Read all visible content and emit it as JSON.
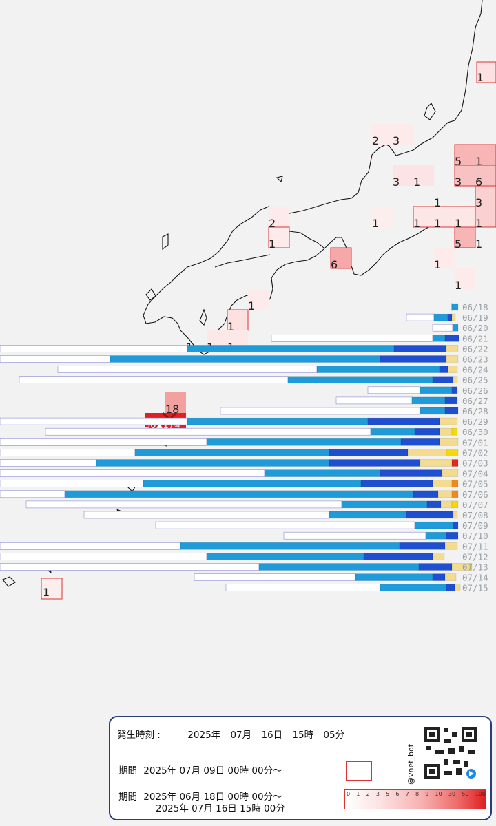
{
  "map": {
    "grid_cells": [
      {
        "label": "1"
      },
      {
        "label": "2"
      },
      {
        "label": "3"
      },
      {
        "label": "5"
      },
      {
        "label": "1"
      },
      {
        "label": "3"
      },
      {
        "label": "1"
      },
      {
        "label": "3"
      },
      {
        "label": "6"
      },
      {
        "label": "1"
      },
      {
        "label": "3"
      },
      {
        "label": "1"
      },
      {
        "label": "1"
      },
      {
        "label": "1"
      },
      {
        "label": "1"
      },
      {
        "label": "1"
      },
      {
        "label": "5"
      },
      {
        "label": "1"
      },
      {
        "label": "1"
      },
      {
        "label": "1"
      },
      {
        "label": "2"
      },
      {
        "label": "1"
      },
      {
        "label": "6"
      },
      {
        "label": "1"
      },
      {
        "label": "1"
      },
      {
        "label": "1"
      },
      {
        "label": "1"
      },
      {
        "label": "1"
      },
      {
        "label": "18"
      },
      {
        "label": "1"
      }
    ],
    "epicenter_label": "50▲174"
  },
  "daily_chart": {
    "dates": [
      "06/18",
      "06/19",
      "06/20",
      "06/21",
      "06/22",
      "06/23",
      "06/24",
      "06/25",
      "06/26",
      "06/27",
      "06/28",
      "06/29",
      "06/30",
      "07/01",
      "07/02",
      "07/03",
      "07/04",
      "07/05",
      "07/06",
      "07/07",
      "07/08",
      "07/09",
      "07/10",
      "07/11",
      "07/12",
      "07/13",
      "07/14",
      "07/15"
    ],
    "colors": {
      "empty": "#ffffff",
      "light_blue": "#1e9bd8",
      "dark_blue": "#1f4fd1",
      "yellow": "#f3dc8f",
      "bright_yellow": "#f5d90a",
      "orange": "#f08a20",
      "red": "#e02a1a"
    }
  },
  "info": {
    "time_label": "発生時刻 :",
    "time_year": "2025年",
    "time_month": "07月",
    "time_day": "16日",
    "time_hour": "15時",
    "time_min": "05分",
    "recent_label": "期間",
    "recent_range": "2025年 07月 09日 00時 00分～",
    "all_label": "期間",
    "all_range_start": "2025年 06月 18日 00時 00分～",
    "all_range_end": "2025年 07月 16日 15時 00分",
    "scale_ticks": [
      "0",
      "1",
      "2",
      "3",
      "5",
      "6",
      "7",
      "8",
      "9",
      "10",
      "30",
      "50",
      "100"
    ],
    "handle": "@vnet_bot"
  }
}
